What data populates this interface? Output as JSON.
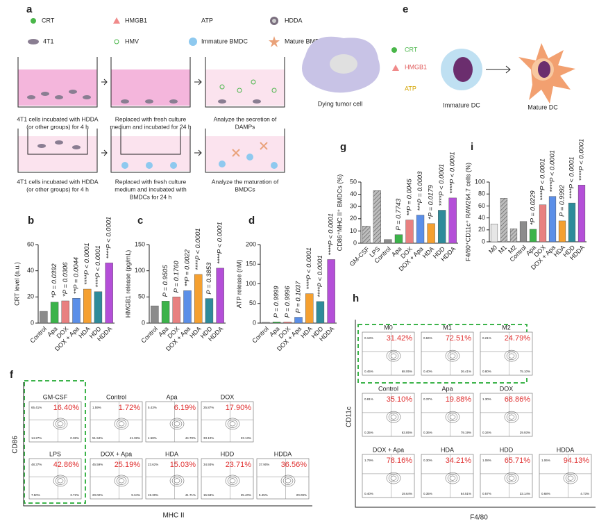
{
  "panel_a": {
    "label": "a",
    "legend": [
      "CRT",
      "HMGB1",
      "ATP",
      "HDDA",
      "4T1",
      "HMV",
      "Immature BMDC",
      "Mature BMDC"
    ],
    "captions": [
      [
        "4T1 cells incubated with HDDA",
        "(or other groups) for 4 h"
      ],
      [
        "Replaced with fresh culture",
        "medium and incubated for 24 h"
      ],
      [
        "Analyze the secretion of",
        "DAMPs"
      ],
      [
        "4T1 cells incubated with HDDA",
        "(or other groups) for 4 h"
      ],
      [
        "Replaced with fresh culture",
        "medium and incubated with",
        "BMDCs for 24 h"
      ],
      [
        "Analyze the maturation of",
        "BMDCs"
      ]
    ]
  },
  "panel_e": {
    "label": "e",
    "markers": [
      "CRT",
      "HMGB1",
      "ATP"
    ],
    "cells": [
      "Dying tumor cell",
      "Immature DC",
      "Mature DC"
    ]
  },
  "chart_data": [
    {
      "type": "bar",
      "label": "b",
      "y_label": "CRT level (a.u.)",
      "categories": [
        "Control",
        "Apa",
        "DOX",
        "DOX + Apa",
        "HDA",
        "HDD",
        "HDDA"
      ],
      "values": [
        9,
        16,
        17,
        19,
        26,
        24,
        46
      ],
      "colors": [
        "#8c8c8c",
        "#3cb34a",
        "#e88080",
        "#5b8fe8",
        "#f5a030",
        "#2e8b9a",
        "#b44fd8"
      ],
      "annotations": [
        null,
        "*P = 0.0392",
        "*P = 0.0306",
        "**P = 0.0044",
        "****P < 0.0001",
        "****P < 0.0001",
        "****P < 0.0001"
      ],
      "ylim": [
        0,
        60
      ],
      "yticks": [
        0,
        20,
        40,
        60
      ]
    },
    {
      "type": "bar",
      "label": "c",
      "y_label": "HMGB1 release (pg/mL)",
      "categories": [
        "Control",
        "Apa",
        "DOX",
        "DOX + Apa",
        "HDA",
        "HDD",
        "HDDA"
      ],
      "values": [
        33,
        42,
        50,
        62,
        93,
        47,
        105
      ],
      "colors": [
        "#8c8c8c",
        "#3cb34a",
        "#e88080",
        "#5b8fe8",
        "#f5a030",
        "#2e8b9a",
        "#b44fd8"
      ],
      "annotations": [
        null,
        "P = 0.9505",
        "P = 0.1760",
        "**P = 0.0022",
        "****P < 0.0001",
        "P = 0.3853",
        "****P < 0.0001"
      ],
      "ylim": [
        0,
        150
      ],
      "yticks": [
        0,
        50,
        100,
        150
      ]
    },
    {
      "type": "bar",
      "label": "d",
      "y_label": "ATP release (nM)",
      "categories": [
        "Control",
        "Apa",
        "DOX",
        "DOX + Apa",
        "HDA",
        "HDD",
        "HDDA"
      ],
      "values": [
        2,
        3,
        3,
        15,
        75,
        55,
        162
      ],
      "colors": [
        "#8c8c8c",
        "#3cb34a",
        "#e88080",
        "#5b8fe8",
        "#f5a030",
        "#2e8b9a",
        "#b44fd8"
      ],
      "annotations": [
        null,
        "P = 0.9999",
        "P = 0.9996",
        "P = 0.1037",
        "****P < 0.0001",
        "****P < 0.0001",
        "****P < 0.0001"
      ],
      "ylim": [
        0,
        200
      ],
      "yticks": [
        0,
        50,
        100,
        150,
        200
      ]
    },
    {
      "type": "bar",
      "label": "g",
      "y_label": "CD86⁺MHC II⁺ BMDCs (%)",
      "categories": [
        "GM-CSF",
        "LPS",
        "Control",
        "Apa",
        "DOX",
        "DOX + Apa",
        "HDA",
        "HDD",
        "HDDA"
      ],
      "values": [
        14,
        43,
        3,
        7,
        19,
        23,
        16,
        27,
        37
      ],
      "colors": [
        "#9a9a9a",
        "#9a9a9a",
        "#8c8c8c",
        "#3cb34a",
        "#e88080",
        "#5b8fe8",
        "#f5a030",
        "#2e8b9a",
        "#b44fd8"
      ],
      "hatch": [
        true,
        true,
        false,
        false,
        false,
        false,
        false,
        false,
        false
      ],
      "annotations": [
        null,
        null,
        null,
        "P = 0.7743",
        "**P = 0.0045",
        "***P = 0.0003",
        "*P = 0.0179",
        "****P < 0.0001",
        "****P < 0.0001"
      ],
      "ylim": [
        0,
        50
      ],
      "yticks": [
        0,
        10,
        20,
        30,
        40,
        50
      ]
    },
    {
      "type": "bar",
      "label": "i",
      "y_label": "F4/80⁺CD11c⁺ RAW264.7 cells (%)",
      "categories": [
        "M0",
        "M1",
        "M2",
        "Control",
        "Apa",
        "DOX",
        "DOX + Apa",
        "HDA",
        "HDD",
        "HDDA"
      ],
      "values": [
        30,
        73,
        22,
        34,
        21,
        62,
        76,
        35,
        65,
        95
      ],
      "colors": [
        "#e6e6e6",
        "#9a9a9a",
        "#9a9a9a",
        "#8c8c8c",
        "#3cb34a",
        "#e88080",
        "#5b8fe8",
        "#f5a030",
        "#2e8b9a",
        "#b44fd8"
      ],
      "hatch": [
        false,
        true,
        true,
        false,
        false,
        false,
        false,
        false,
        false,
        false
      ],
      "annotations": [
        null,
        null,
        null,
        null,
        "*P = 0.0229",
        "****P < 0.0001",
        "****P < 0.0001",
        "P = 0.9992",
        "****P < 0.0001",
        "****P < 0.0001"
      ],
      "ylim": [
        0,
        100
      ],
      "yticks": [
        0,
        20,
        40,
        60,
        80,
        100
      ]
    }
  ],
  "flow_f": {
    "label": "f",
    "y_label": "CD86",
    "x_label": "MHC II",
    "plots": [
      {
        "name": "GM-CSF",
        "percent": "16.40%",
        "quadrants": [
          "65.41%",
          "14.27%",
          "0.38%"
        ]
      },
      {
        "name": "Control",
        "percent": "1.72%",
        "quadrants": [
          "1.59%",
          "51.94%",
          "41.38%"
        ]
      },
      {
        "name": "Apa",
        "percent": "6.19%",
        "quadrants": [
          "5.43%",
          "4.58%",
          "44.70%"
        ]
      },
      {
        "name": "DOX",
        "percent": "17.90%",
        "quadrants": [
          "25.87%",
          "33.10%",
          "23.13%"
        ]
      },
      {
        "name": "LPS",
        "percent": "42.86%",
        "quadrants": [
          "48.37%",
          "7.50%",
          "3.72%"
        ]
      },
      {
        "name": "DOX + Apa",
        "percent": "25.19%",
        "quadrants": [
          "45.59%",
          "20.02%",
          "9.34%"
        ]
      },
      {
        "name": "HDA",
        "percent": "15.03%",
        "quadrants": [
          "23.62%",
          "19.30%",
          "41.71%"
        ]
      },
      {
        "name": "HDD",
        "percent": "23.71%",
        "quadrants": [
          "34.93%",
          "15.58%",
          "25.40%"
        ]
      },
      {
        "name": "HDDA",
        "percent": "36.56%",
        "quadrants": [
          "37.90%",
          "5.45%",
          "20.09%"
        ]
      }
    ]
  },
  "flow_h": {
    "label": "h",
    "y_label": "CD11c",
    "x_label": "F4/80",
    "plots": [
      {
        "name": "M0",
        "percent": "31.42%",
        "quadrants": [
          "0.13%",
          "0.45%",
          "68.05%"
        ]
      },
      {
        "name": "M1",
        "percent": "72.51%",
        "quadrants": [
          "0.84%",
          "0.40%",
          "26.41%"
        ]
      },
      {
        "name": "M2",
        "percent": "24.79%",
        "quadrants": [
          "0.21%",
          "0.80%",
          "75.10%"
        ]
      },
      {
        "name": "Control",
        "percent": "35.10%",
        "quadrants": [
          "0.81%",
          "0.35%",
          "63.85%"
        ]
      },
      {
        "name": "Apa",
        "percent": "19.88%",
        "quadrants": [
          "0.37%",
          "0.36%",
          "79.19%"
        ]
      },
      {
        "name": "DOX",
        "percent": "68.86%",
        "quadrants": [
          "1.30%",
          "0.34%",
          "29.93%"
        ]
      },
      {
        "name": "DOX + Apa",
        "percent": "78.16%",
        "quadrants": [
          "1.79%",
          "0.40%",
          "19.64%"
        ]
      },
      {
        "name": "HDA",
        "percent": "34.21%",
        "quadrants": [
          "0.30%",
          "0.35%",
          "64.51%"
        ]
      },
      {
        "name": "HDD",
        "percent": "65.71%",
        "quadrants": [
          "1.08%",
          "0.57%",
          "33.14%"
        ]
      },
      {
        "name": "HDDA",
        "percent": "94.13%",
        "quadrants": [
          "1.06%",
          "0.68%",
          "4.73%"
        ]
      }
    ]
  }
}
